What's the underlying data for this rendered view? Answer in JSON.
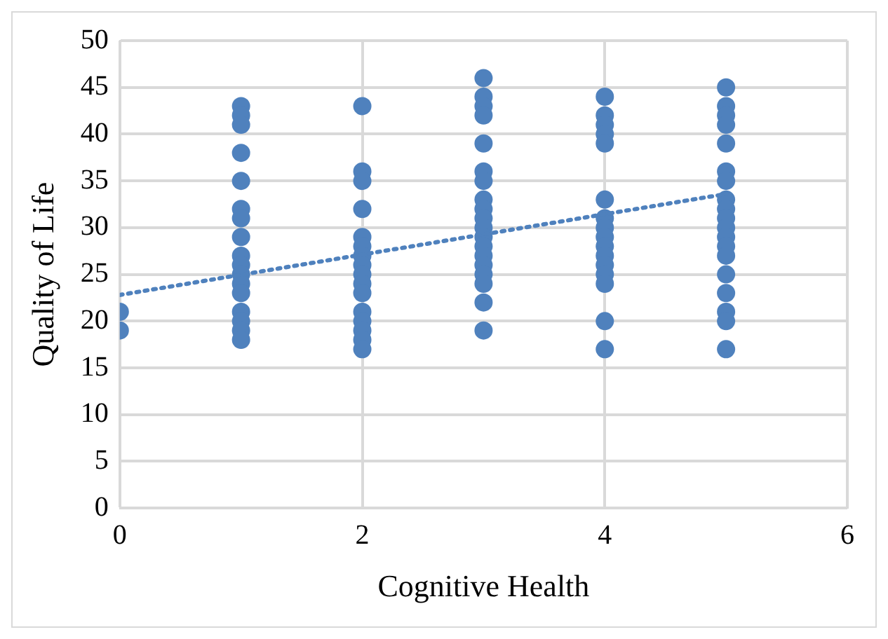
{
  "chart_data": {
    "type": "scatter",
    "xlabel": "Cognitive Health",
    "ylabel": "Quality of Life",
    "xlim": [
      0,
      6
    ],
    "xticks": [
      0,
      2,
      4,
      6
    ],
    "ylim": [
      0,
      50
    ],
    "yticks": [
      0,
      5,
      10,
      15,
      20,
      25,
      30,
      35,
      40,
      45,
      50
    ],
    "grid": true,
    "legend": false,
    "marker": "circle",
    "series": [
      {
        "color": "#4f81bd",
        "x": [
          0,
          0,
          1,
          1,
          1,
          1,
          1,
          1,
          1,
          1,
          1,
          1,
          1,
          1,
          1,
          1,
          1,
          1,
          1,
          2,
          2,
          2,
          2,
          2,
          2,
          2,
          2,
          2,
          2,
          2,
          2,
          2,
          2,
          2,
          2,
          3,
          3,
          3,
          3,
          3,
          3,
          3,
          3,
          3,
          3,
          3,
          3,
          3,
          3,
          3,
          3,
          3,
          3,
          3,
          4,
          4,
          4,
          4,
          4,
          4,
          4,
          4,
          4,
          4,
          4,
          4,
          4,
          4,
          4,
          4,
          5,
          5,
          5,
          5,
          5,
          5,
          5,
          5,
          5,
          5,
          5,
          5,
          5,
          5,
          5,
          5,
          5,
          5,
          5
        ],
        "values": [
          21,
          19,
          43,
          42,
          41,
          38,
          35,
          32,
          31,
          29,
          27,
          26,
          25,
          24,
          23,
          21,
          20,
          19,
          18,
          43,
          36,
          35,
          32,
          29,
          28,
          27,
          26,
          25,
          24,
          23,
          21,
          20,
          19,
          18,
          17,
          46,
          44,
          43,
          42,
          39,
          36,
          35,
          33,
          32,
          31,
          30,
          29,
          28,
          27,
          26,
          25,
          24,
          22,
          19,
          44,
          42,
          41,
          40,
          39,
          33,
          31,
          30,
          29,
          28,
          27,
          26,
          25,
          24,
          20,
          17,
          45,
          43,
          42,
          41,
          39,
          36,
          35,
          33,
          32,
          31,
          30,
          29,
          28,
          27,
          25,
          23,
          21,
          20,
          17
        ]
      },
      {
        "type": "line",
        "color": "#4f81bd",
        "line_style": "dotted",
        "marker": "none",
        "x": [
          0,
          5
        ],
        "values": [
          22.8,
          33.6
        ]
      }
    ]
  }
}
